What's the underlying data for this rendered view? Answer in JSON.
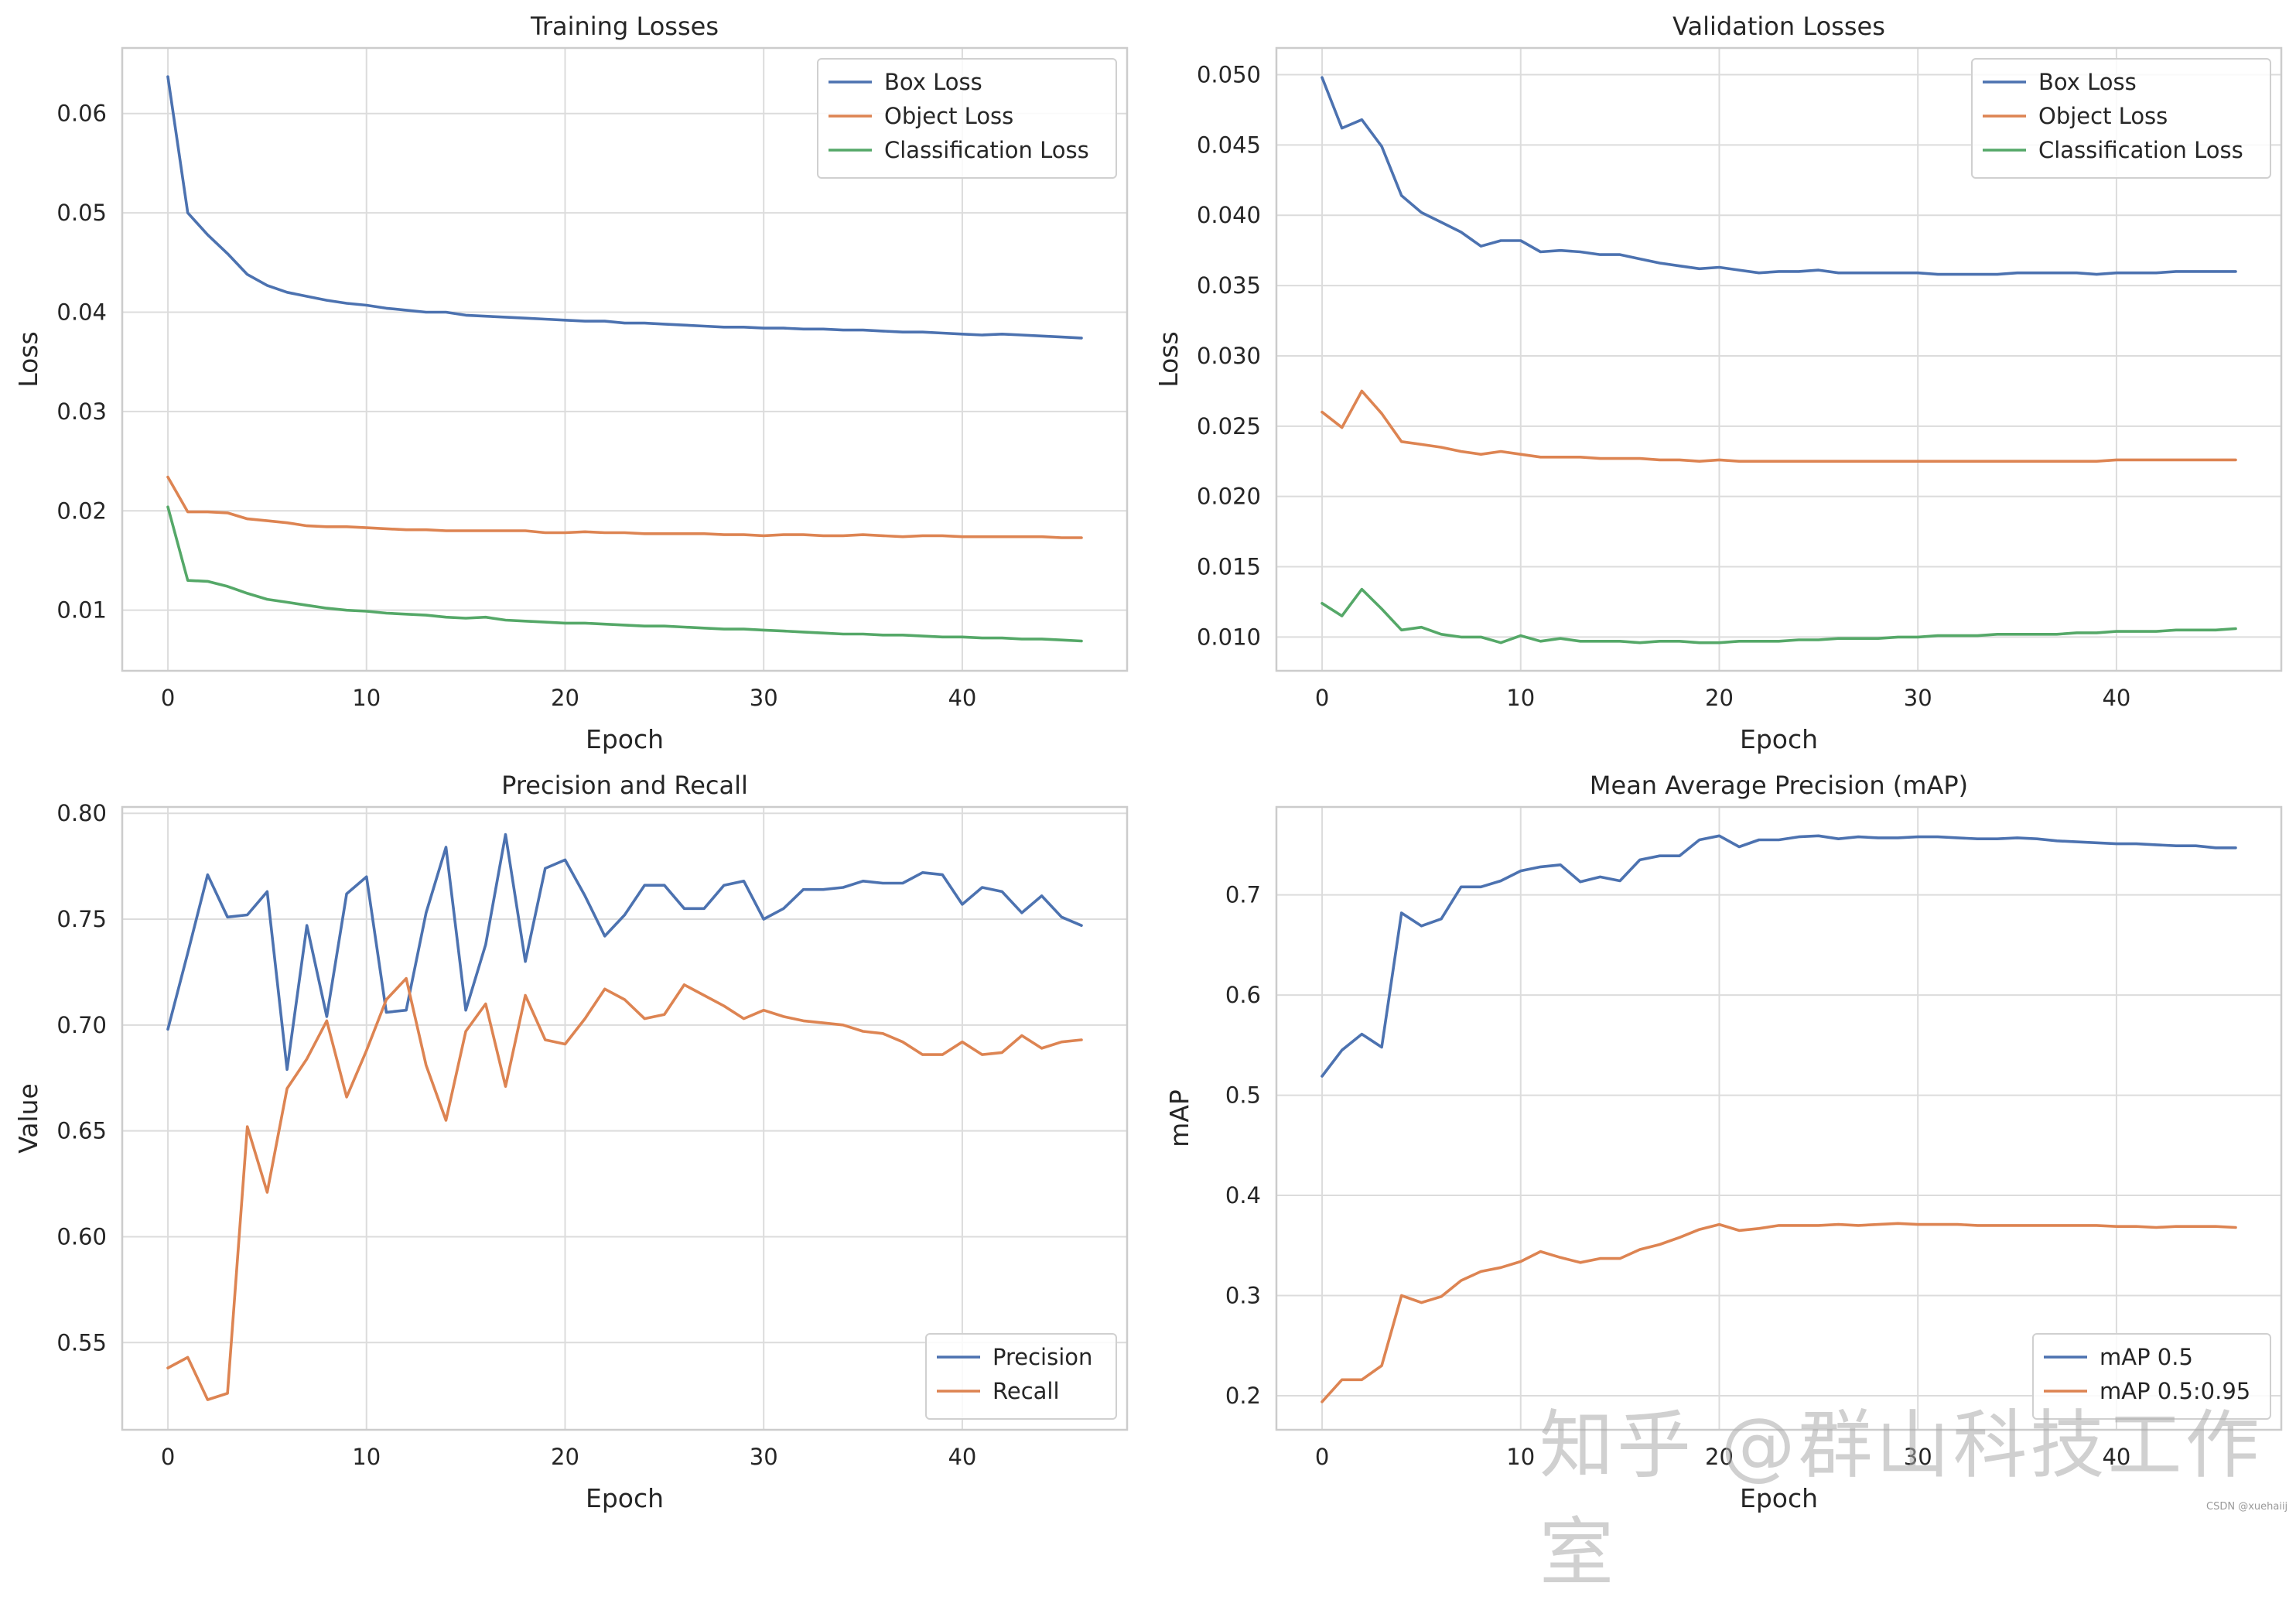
{
  "watermark": {
    "main": "知乎 @群山科技工作室",
    "small": "CSDN @xuehaiij"
  },
  "colors": {
    "blue": "#4c72b0",
    "orange": "#dd8452",
    "green": "#55a868"
  },
  "chart_data": [
    {
      "type": "line",
      "title": "Training Losses",
      "xlabel": "Epoch",
      "ylabel": "Loss",
      "xlim": [
        -2.3,
        48.3
      ],
      "ylim": [
        0.0039,
        0.0666
      ],
      "xticks": [
        0,
        10,
        20,
        30,
        40
      ],
      "xtick_labels": [
        "0",
        "10",
        "20",
        "30",
        "40"
      ],
      "yticks": [
        0.01,
        0.02,
        0.03,
        0.04,
        0.05,
        0.06
      ],
      "ytick_labels": [
        "0.01",
        "0.02",
        "0.03",
        "0.04",
        "0.05",
        "0.06"
      ],
      "legend": "upper-right",
      "series": [
        {
          "name": "Box Loss",
          "color": "#4c72b0",
          "values": [
            0.0637,
            0.05,
            0.0478,
            0.0459,
            0.0438,
            0.0427,
            0.042,
            0.0416,
            0.0412,
            0.0409,
            0.0407,
            0.0404,
            0.0402,
            0.04,
            0.04,
            0.0397,
            0.0396,
            0.0395,
            0.0394,
            0.0393,
            0.0392,
            0.0391,
            0.0391,
            0.0389,
            0.0389,
            0.0388,
            0.0387,
            0.0386,
            0.0385,
            0.0385,
            0.0384,
            0.0384,
            0.0383,
            0.0383,
            0.0382,
            0.0382,
            0.0381,
            0.038,
            0.038,
            0.0379,
            0.0378,
            0.0377,
            0.0378,
            0.0377,
            0.0376,
            0.0375,
            0.0374
          ]
        },
        {
          "name": "Object Loss",
          "color": "#dd8452",
          "values": [
            0.0234,
            0.0199,
            0.0199,
            0.0198,
            0.0192,
            0.019,
            0.0188,
            0.0185,
            0.0184,
            0.0184,
            0.0183,
            0.0182,
            0.0181,
            0.0181,
            0.018,
            0.018,
            0.018,
            0.018,
            0.018,
            0.0178,
            0.0178,
            0.0179,
            0.0178,
            0.0178,
            0.0177,
            0.0177,
            0.0177,
            0.0177,
            0.0176,
            0.0176,
            0.0175,
            0.0176,
            0.0176,
            0.0175,
            0.0175,
            0.0176,
            0.0175,
            0.0174,
            0.0175,
            0.0175,
            0.0174,
            0.0174,
            0.0174,
            0.0174,
            0.0174,
            0.0173,
            0.0173
          ]
        },
        {
          "name": "Classification Loss",
          "color": "#55a868",
          "values": [
            0.0204,
            0.013,
            0.0129,
            0.0124,
            0.0117,
            0.0111,
            0.0108,
            0.0105,
            0.0102,
            0.01,
            0.0099,
            0.0097,
            0.0096,
            0.0095,
            0.0093,
            0.0092,
            0.0093,
            0.009,
            0.0089,
            0.0088,
            0.0087,
            0.0087,
            0.0086,
            0.0085,
            0.0084,
            0.0084,
            0.0083,
            0.0082,
            0.0081,
            0.0081,
            0.008,
            0.0079,
            0.0078,
            0.0077,
            0.0076,
            0.0076,
            0.0075,
            0.0075,
            0.0074,
            0.0073,
            0.0073,
            0.0072,
            0.0072,
            0.0071,
            0.0071,
            0.007,
            0.0069
          ]
        }
      ]
    },
    {
      "type": "line",
      "title": "Validation Losses",
      "xlabel": "Epoch",
      "ylabel": "Loss",
      "xlim": [
        -2.3,
        48.3
      ],
      "ylim": [
        0.0076,
        0.0519
      ],
      "xticks": [
        0,
        10,
        20,
        30,
        40
      ],
      "xtick_labels": [
        "0",
        "10",
        "20",
        "30",
        "40"
      ],
      "yticks": [
        0.01,
        0.015,
        0.02,
        0.025,
        0.03,
        0.035,
        0.04,
        0.045,
        0.05
      ],
      "ytick_labels": [
        "0.010",
        "0.015",
        "0.020",
        "0.025",
        "0.030",
        "0.035",
        "0.040",
        "0.045",
        "0.050"
      ],
      "legend": "upper-right",
      "series": [
        {
          "name": "Box Loss",
          "color": "#4c72b0",
          "values": [
            0.0498,
            0.0462,
            0.0468,
            0.0449,
            0.0414,
            0.0402,
            0.0395,
            0.0388,
            0.0378,
            0.0382,
            0.0382,
            0.0374,
            0.0375,
            0.0374,
            0.0372,
            0.0372,
            0.0369,
            0.0366,
            0.0364,
            0.0362,
            0.0363,
            0.0361,
            0.0359,
            0.036,
            0.036,
            0.0361,
            0.0359,
            0.0359,
            0.0359,
            0.0359,
            0.0359,
            0.0358,
            0.0358,
            0.0358,
            0.0358,
            0.0359,
            0.0359,
            0.0359,
            0.0359,
            0.0358,
            0.0359,
            0.0359,
            0.0359,
            0.036,
            0.036,
            0.036,
            0.036
          ]
        },
        {
          "name": "Object Loss",
          "color": "#dd8452",
          "values": [
            0.026,
            0.0249,
            0.0275,
            0.0259,
            0.0239,
            0.0237,
            0.0235,
            0.0232,
            0.023,
            0.0232,
            0.023,
            0.0228,
            0.0228,
            0.0228,
            0.0227,
            0.0227,
            0.0227,
            0.0226,
            0.0226,
            0.0225,
            0.0226,
            0.0225,
            0.0225,
            0.0225,
            0.0225,
            0.0225,
            0.0225,
            0.0225,
            0.0225,
            0.0225,
            0.0225,
            0.0225,
            0.0225,
            0.0225,
            0.0225,
            0.0225,
            0.0225,
            0.0225,
            0.0225,
            0.0225,
            0.0226,
            0.0226,
            0.0226,
            0.0226,
            0.0226,
            0.0226,
            0.0226
          ]
        },
        {
          "name": "Classification Loss",
          "color": "#55a868",
          "values": [
            0.0124,
            0.0115,
            0.0134,
            0.012,
            0.0105,
            0.0107,
            0.0102,
            0.01,
            0.01,
            0.0096,
            0.0101,
            0.0097,
            0.0099,
            0.0097,
            0.0097,
            0.0097,
            0.0096,
            0.0097,
            0.0097,
            0.0096,
            0.0096,
            0.0097,
            0.0097,
            0.0097,
            0.0098,
            0.0098,
            0.0099,
            0.0099,
            0.0099,
            0.01,
            0.01,
            0.0101,
            0.0101,
            0.0101,
            0.0102,
            0.0102,
            0.0102,
            0.0102,
            0.0103,
            0.0103,
            0.0104,
            0.0104,
            0.0104,
            0.0105,
            0.0105,
            0.0105,
            0.0106
          ]
        }
      ]
    },
    {
      "type": "line",
      "title": "Precision and Recall",
      "xlabel": "Epoch",
      "ylabel": "Value",
      "xlim": [
        -2.3,
        48.3
      ],
      "ylim": [
        0.5088,
        0.803
      ],
      "xticks": [
        0,
        10,
        20,
        30,
        40
      ],
      "xtick_labels": [
        "0",
        "10",
        "20",
        "30",
        "40"
      ],
      "yticks": [
        0.55,
        0.6,
        0.65,
        0.7,
        0.75,
        0.8
      ],
      "ytick_labels": [
        "0.55",
        "0.60",
        "0.65",
        "0.70",
        "0.75",
        "0.80"
      ],
      "legend": "lower-right",
      "series": [
        {
          "name": "Precision",
          "color": "#4c72b0",
          "values": [
            0.698,
            0.734,
            0.771,
            0.751,
            0.752,
            0.763,
            0.679,
            0.747,
            0.704,
            0.762,
            0.77,
            0.706,
            0.707,
            0.753,
            0.784,
            0.707,
            0.738,
            0.79,
            0.73,
            0.774,
            0.778,
            0.761,
            0.742,
            0.752,
            0.766,
            0.766,
            0.755,
            0.755,
            0.766,
            0.768,
            0.75,
            0.755,
            0.764,
            0.764,
            0.765,
            0.768,
            0.767,
            0.767,
            0.772,
            0.771,
            0.757,
            0.765,
            0.763,
            0.753,
            0.761,
            0.751,
            0.747
          ]
        },
        {
          "name": "Recall",
          "color": "#dd8452",
          "values": [
            0.538,
            0.543,
            0.523,
            0.526,
            0.652,
            0.621,
            0.67,
            0.684,
            0.702,
            0.666,
            0.688,
            0.712,
            0.722,
            0.681,
            0.655,
            0.697,
            0.71,
            0.671,
            0.714,
            0.693,
            0.691,
            0.703,
            0.717,
            0.712,
            0.703,
            0.705,
            0.719,
            0.714,
            0.709,
            0.703,
            0.707,
            0.704,
            0.702,
            0.701,
            0.7,
            0.697,
            0.696,
            0.692,
            0.686,
            0.686,
            0.692,
            0.686,
            0.687,
            0.695,
            0.689,
            0.692,
            0.693
          ]
        }
      ]
    },
    {
      "type": "line",
      "title": "Mean Average Precision (mAP)",
      "xlabel": "Epoch",
      "ylabel": "mAP",
      "xlim": [
        -2.3,
        48.3
      ],
      "ylim": [
        0.166,
        0.7878
      ],
      "xticks": [
        0,
        10,
        20,
        30,
        40
      ],
      "xtick_labels": [
        "0",
        "10",
        "20",
        "30",
        "40"
      ],
      "yticks": [
        0.2,
        0.3,
        0.4,
        0.5,
        0.6,
        0.7
      ],
      "ytick_labels": [
        "0.2",
        "0.3",
        "0.4",
        "0.5",
        "0.6",
        "0.7"
      ],
      "legend": "lower-right",
      "series": [
        {
          "name": "mAP 0.5",
          "color": "#4c72b0",
          "values": [
            0.519,
            0.545,
            0.561,
            0.548,
            0.682,
            0.669,
            0.676,
            0.708,
            0.708,
            0.714,
            0.724,
            0.728,
            0.73,
            0.713,
            0.718,
            0.714,
            0.735,
            0.739,
            0.739,
            0.755,
            0.759,
            0.748,
            0.755,
            0.755,
            0.758,
            0.759,
            0.756,
            0.758,
            0.757,
            0.757,
            0.758,
            0.758,
            0.757,
            0.756,
            0.756,
            0.757,
            0.756,
            0.754,
            0.753,
            0.752,
            0.751,
            0.751,
            0.75,
            0.749,
            0.749,
            0.747,
            0.747
          ]
        },
        {
          "name": "mAP 0.5:0.95",
          "color": "#dd8452",
          "values": [
            0.194,
            0.216,
            0.216,
            0.23,
            0.3,
            0.293,
            0.299,
            0.315,
            0.324,
            0.328,
            0.334,
            0.344,
            0.338,
            0.333,
            0.337,
            0.337,
            0.346,
            0.351,
            0.358,
            0.366,
            0.371,
            0.365,
            0.367,
            0.37,
            0.37,
            0.37,
            0.371,
            0.37,
            0.371,
            0.372,
            0.371,
            0.371,
            0.371,
            0.37,
            0.37,
            0.37,
            0.37,
            0.37,
            0.37,
            0.37,
            0.369,
            0.369,
            0.368,
            0.369,
            0.369,
            0.369,
            0.368
          ]
        }
      ]
    }
  ]
}
